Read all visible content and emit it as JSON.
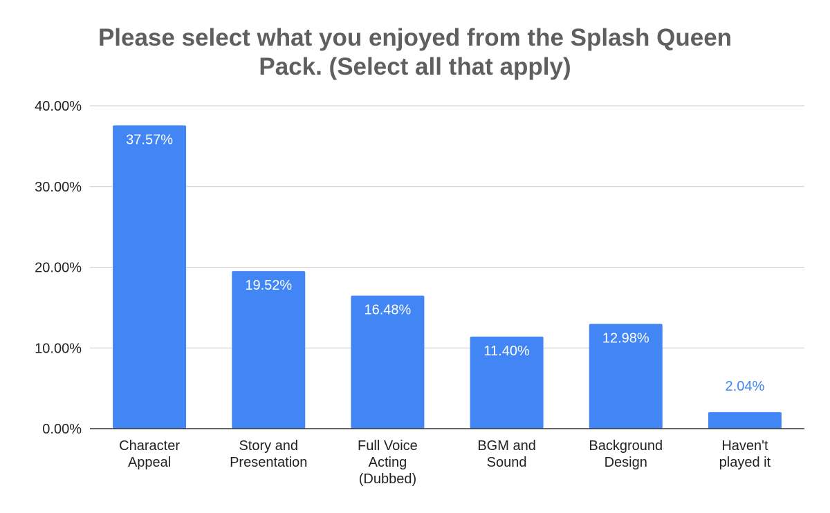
{
  "chart_data": {
    "type": "bar",
    "title_lines": [
      "Please select what you enjoyed from the Splash Queen",
      "Pack. (Select all that apply)"
    ],
    "categories": [
      [
        "Character",
        "Appeal"
      ],
      [
        "Story and",
        "Presentation"
      ],
      [
        "Full Voice",
        "Acting",
        "(Dubbed)"
      ],
      [
        "BGM and",
        "Sound"
      ],
      [
        "Background",
        "Design"
      ],
      [
        "Haven't",
        "played it"
      ]
    ],
    "values": [
      37.57,
      19.52,
      16.48,
      11.4,
      12.98,
      2.04
    ],
    "value_labels": [
      "37.57%",
      "19.52%",
      "16.48%",
      "11.40%",
      "12.98%",
      "2.04%"
    ],
    "y_ticks": [
      "0.00%",
      "10.00%",
      "20.00%",
      "30.00%",
      "40.00%"
    ],
    "ylim": [
      0,
      40
    ],
    "grid": true,
    "colors": {
      "bar": "#4285f4",
      "label_inside": "#ffffff",
      "label_outside": "#4285f4",
      "grid": "#cccccc",
      "axis": "#333333",
      "text": "#222222",
      "title": "#5f5f5f"
    }
  }
}
